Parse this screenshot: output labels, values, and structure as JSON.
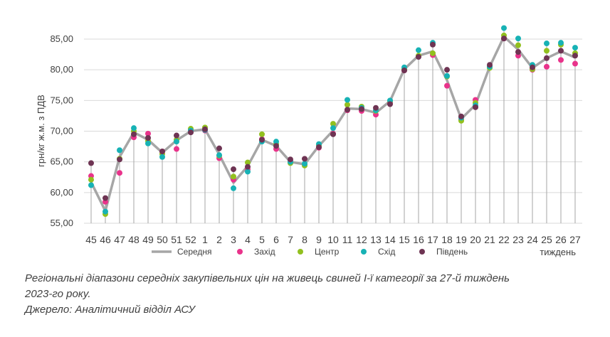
{
  "chart_data": {
    "type": "line",
    "ylabel": "грн/кг ж.м. з ПДВ",
    "xlabel": "тиждень",
    "ylim": [
      55,
      85
    ],
    "y_ticks": [
      "55,00",
      "60,00",
      "65,00",
      "70,00",
      "75,00",
      "80,00",
      "85,00"
    ],
    "y_tick_values": [
      55,
      60,
      65,
      70,
      75,
      80,
      85
    ],
    "grid": "horizontal",
    "legend_position": "bottom",
    "categories": [
      "45",
      "46",
      "47",
      "48",
      "49",
      "50",
      "51",
      "52",
      "1",
      "2",
      "3",
      "4",
      "5",
      "6",
      "7",
      "8",
      "9",
      "10",
      "11",
      "12",
      "13",
      "14",
      "15",
      "16",
      "17",
      "18",
      "19",
      "20",
      "21",
      "22",
      "23",
      "24",
      "25",
      "26",
      "27"
    ],
    "series": [
      {
        "name": "Середня",
        "kind": "line",
        "color": "#a6a6a6",
        "values": [
          61.7,
          57.0,
          65.8,
          69.8,
          68.6,
          66.5,
          68.5,
          70.0,
          70.3,
          66.2,
          61.6,
          64.3,
          68.6,
          67.6,
          65.0,
          64.6,
          67.6,
          70.1,
          73.7,
          73.6,
          73.0,
          74.9,
          80.1,
          82.3,
          83.0,
          78.3,
          72.0,
          74.3,
          80.5,
          85.4,
          83.3,
          80.3,
          81.9,
          83.0,
          82.0
        ]
      },
      {
        "name": "Захід",
        "kind": "marker",
        "color": "#e9338b",
        "values": [
          62.7,
          58.5,
          63.2,
          69.0,
          69.6,
          66.7,
          67.1,
          70.2,
          70.1,
          65.6,
          62.1,
          63.8,
          68.7,
          67.1,
          65.1,
          64.6,
          67.3,
          69.6,
          73.4,
          73.3,
          72.7,
          74.6,
          79.9,
          82.2,
          82.4,
          77.4,
          71.9,
          75.1,
          80.5,
          85.1,
          82.3,
          80.0,
          80.5,
          81.6,
          81.0
        ]
      },
      {
        "name": "Центр",
        "kind": "marker",
        "color": "#92c01f",
        "values": [
          62.1,
          56.5,
          65.5,
          70.0,
          68.4,
          66.3,
          68.6,
          70.4,
          70.6,
          66.0,
          62.6,
          64.9,
          69.5,
          67.9,
          64.8,
          64.4,
          67.7,
          71.2,
          74.3,
          74.0,
          73.3,
          74.9,
          80.1,
          82.3,
          82.7,
          78.9,
          71.7,
          74.6,
          80.3,
          85.6,
          84.0,
          80.1,
          83.1,
          84.1,
          82.7
        ]
      },
      {
        "name": "Схід",
        "kind": "marker",
        "color": "#17b2b5",
        "values": [
          61.2,
          56.9,
          66.9,
          70.5,
          68.0,
          65.8,
          68.3,
          70.1,
          70.2,
          66.1,
          60.7,
          63.4,
          68.3,
          68.3,
          65.0,
          64.7,
          67.9,
          70.5,
          75.1,
          73.8,
          73.4,
          75.0,
          80.4,
          83.2,
          84.4,
          79.0,
          72.2,
          74.2,
          80.5,
          86.8,
          85.1,
          80.8,
          84.3,
          84.4,
          83.6
        ]
      },
      {
        "name": "Південь",
        "kind": "marker",
        "color": "#6e3453",
        "values": [
          64.8,
          59.1,
          65.4,
          69.5,
          68.9,
          66.7,
          69.3,
          69.8,
          70.3,
          67.2,
          63.8,
          64.2,
          68.6,
          67.6,
          65.4,
          65.5,
          67.4,
          69.5,
          73.5,
          73.6,
          73.8,
          74.4,
          79.9,
          82.1,
          84.1,
          80.0,
          72.4,
          73.9,
          80.8,
          85.1,
          82.9,
          80.4,
          81.9,
          83.1,
          82.3
        ]
      }
    ]
  },
  "caption": {
    "line1": "Регіональні діапазони середніх закупівельних цін на живець свиней І-ї категорії за 27-й тиждень",
    "line2": "2023-го року.",
    "line3": "Джерело: Аналітичний відділ АСУ"
  }
}
